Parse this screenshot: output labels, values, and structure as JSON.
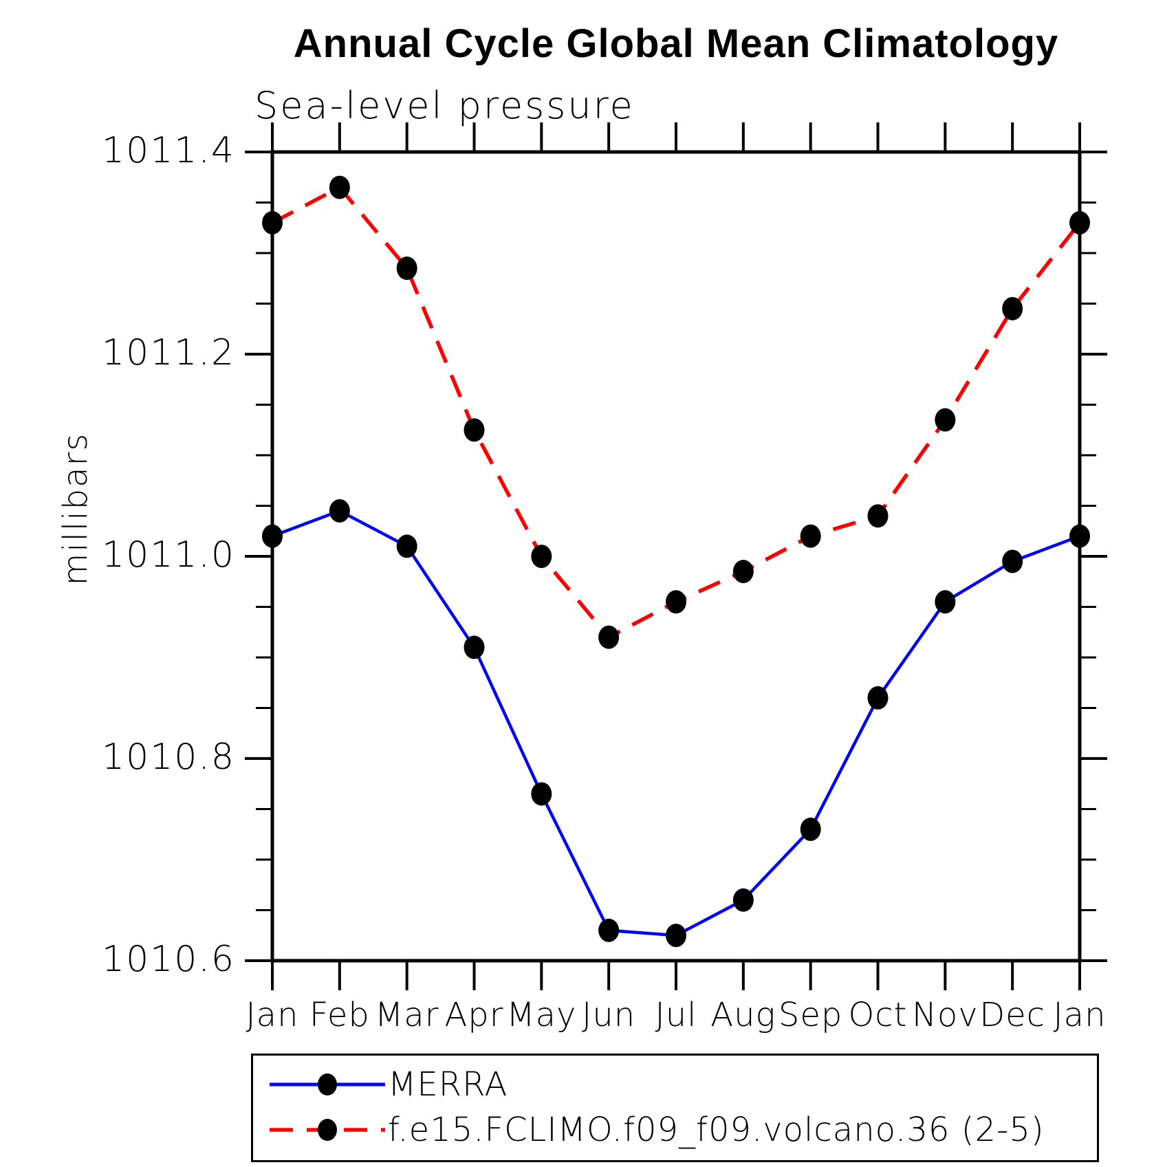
{
  "title": "Annual Cycle Global Mean Climatology",
  "subtitle": "Sea-level pressure",
  "ylabel": "millibars",
  "legend": {
    "items": [
      {
        "label": "MERRA",
        "color": "#0000ff",
        "style": "solid"
      },
      {
        "label": "f.e15.FCLIMO.f09_f09.volcano.36 (2-5)",
        "color": "#ff0000",
        "style": "dashed"
      }
    ]
  },
  "colors": {
    "merra_line": "#0000ff",
    "model_line": "#ff0000",
    "marker": "#000000",
    "axis": "#000000"
  },
  "chart_data": {
    "type": "line",
    "title": "Annual Cycle Global Mean Climatology",
    "subtitle": "Sea-level pressure",
    "xlabel": "",
    "ylabel": "millibars",
    "categories": [
      "Jan",
      "Feb",
      "Mar",
      "Apr",
      "May",
      "Jun",
      "Jul",
      "Aug",
      "Sep",
      "Oct",
      "Nov",
      "Dec",
      "Jan"
    ],
    "series": [
      {
        "name": "MERRA",
        "color": "#0000ff",
        "line_style": "solid",
        "marker": "circle",
        "marker_color": "#000000",
        "values": [
          1011.02,
          1011.045,
          1011.01,
          1010.91,
          1010.765,
          1010.63,
          1010.625,
          1010.66,
          1010.73,
          1010.86,
          1010.955,
          1010.995,
          1011.02
        ]
      },
      {
        "name": "f.e15.FCLIMO.f09_f09.volcano.36 (2-5)",
        "color": "#ff0000",
        "line_style": "dashed",
        "marker": "circle",
        "marker_color": "#000000",
        "values": [
          1011.33,
          1011.365,
          1011.285,
          1011.125,
          1011.0,
          1010.92,
          1010.955,
          1010.985,
          1011.02,
          1011.04,
          1011.135,
          1011.245,
          1011.33
        ]
      }
    ],
    "ylim": [
      1010.6,
      1011.4
    ],
    "yticks": [
      1011.4,
      1011.2,
      1011.0,
      1010.8,
      1010.6
    ],
    "ytick_labels": [
      "1011.4",
      "1011.2",
      "1011.0",
      "1010.8",
      "1010.6"
    ],
    "y_minor_step": 0.05,
    "grid": false,
    "legend_position": "bottom"
  }
}
